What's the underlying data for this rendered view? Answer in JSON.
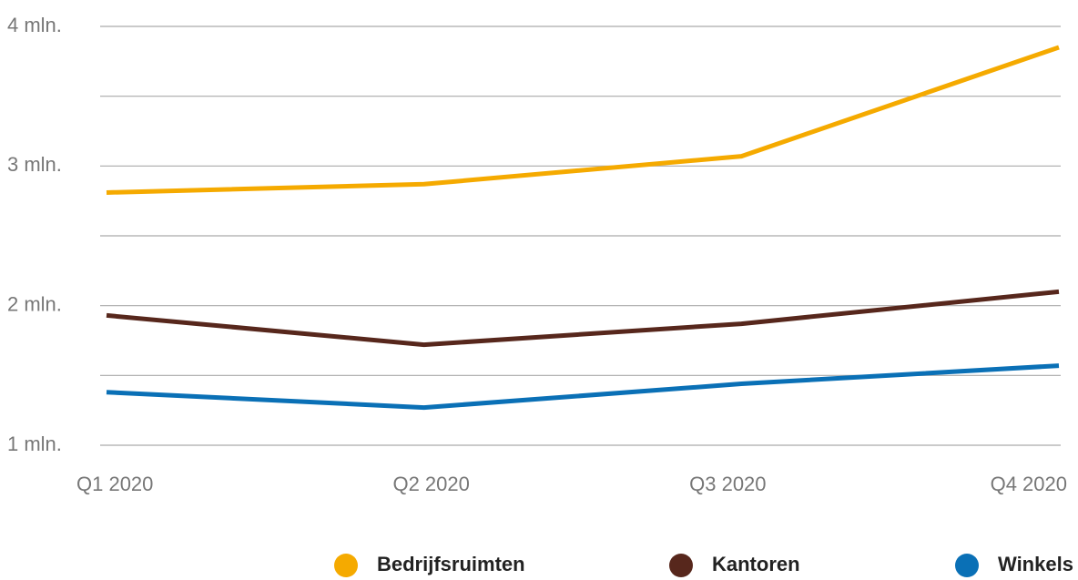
{
  "chart_data": {
    "type": "line",
    "categories": [
      "Q1 2020",
      "Q2 2020",
      "Q3 2020",
      "Q4 2020"
    ],
    "series": [
      {
        "name": "Bedrijfsruimten",
        "color": "#f5aa00",
        "values": [
          2.81,
          2.87,
          3.07,
          3.85
        ]
      },
      {
        "name": "Kantoren",
        "color": "#57271c",
        "values": [
          1.93,
          1.72,
          1.87,
          2.1
        ]
      },
      {
        "name": "Winkels",
        "color": "#0a70b6",
        "values": [
          1.38,
          1.27,
          1.44,
          1.57
        ]
      }
    ],
    "ylim": [
      1,
      4
    ],
    "yticks": [
      {
        "value": 1,
        "label": "1 mln."
      },
      {
        "value": 2,
        "label": "2 mln."
      },
      {
        "value": 3,
        "label": "3 mln."
      },
      {
        "value": 4,
        "label": "4 mln."
      }
    ],
    "minor_yticks": [
      1.5,
      2.5,
      3.5
    ],
    "grid": true,
    "legend": "bottom-right"
  }
}
